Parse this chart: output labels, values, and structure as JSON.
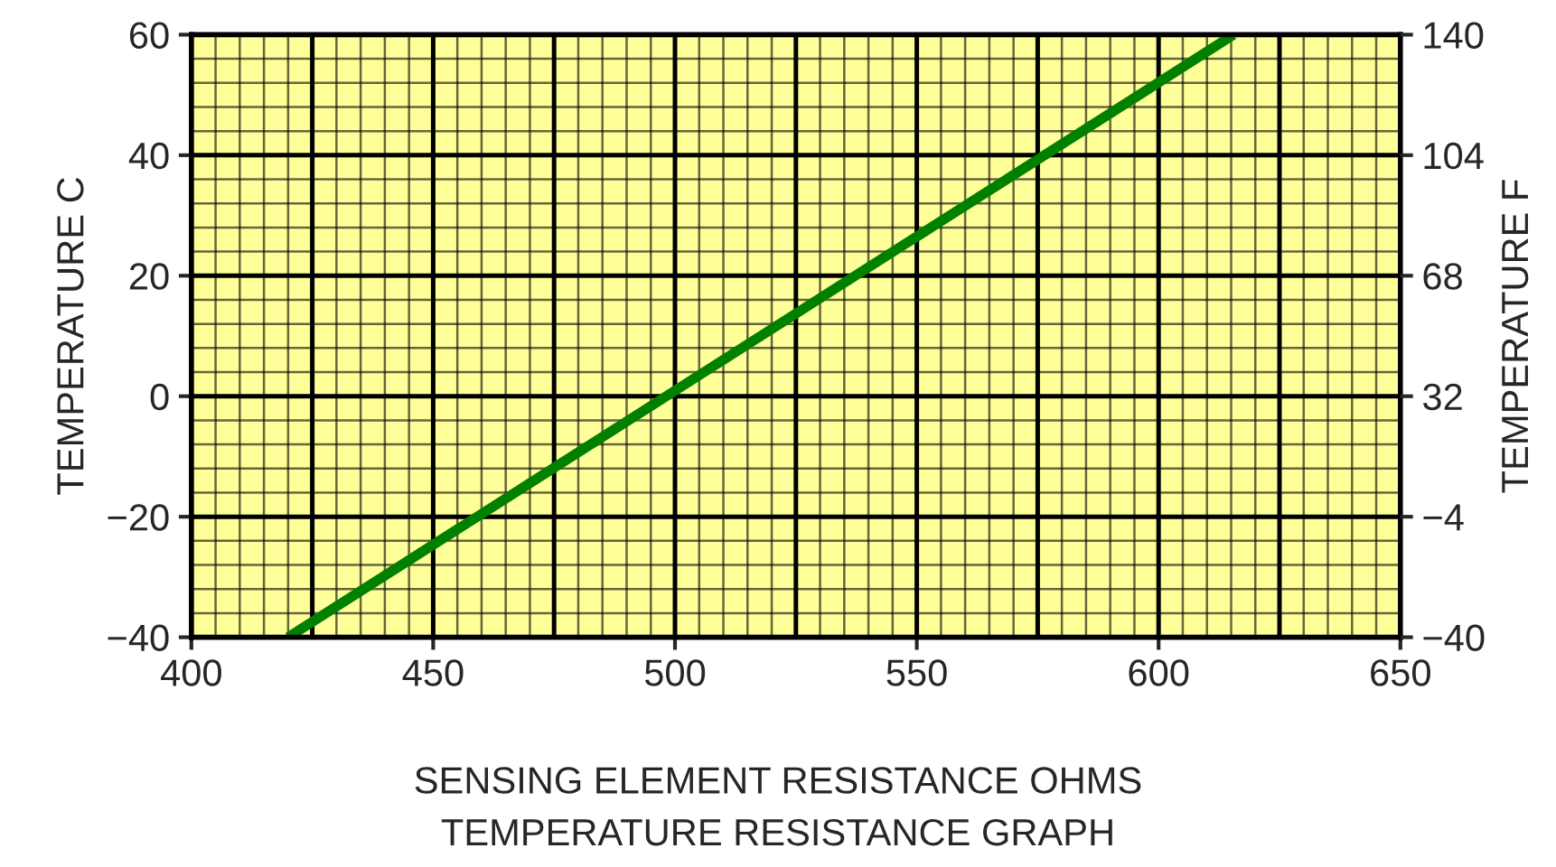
{
  "chart_data": {
    "type": "line",
    "title": "TEMPERATURE RESISTANCE GRAPH",
    "xlabel": "SENSING ELEMENT RESISTANCE OHMS",
    "ylabel": "TEMPERATURE C",
    "y2label": "TEMPERATURE F",
    "x": [
      420,
      615.5
    ],
    "series": [
      {
        "color": "#008000",
        "values": [
          -40,
          60
        ]
      }
    ],
    "xlim": [
      400,
      650
    ],
    "xticks": [
      400,
      450,
      500,
      550,
      600,
      650
    ],
    "ylim": [
      -40,
      60
    ],
    "yticks": [
      {
        "value": -40,
        "label": "−40"
      },
      {
        "value": -20,
        "label": "−20"
      },
      0,
      20,
      40,
      60
    ],
    "y2lim": [
      -40,
      140
    ],
    "y2ticks": [
      {
        "value": -40,
        "label": "−40"
      },
      {
        "value": -4,
        "label": "−4"
      },
      32,
      68,
      104,
      140
    ],
    "grid": true,
    "marker": "none",
    "line_style": "solid"
  }
}
